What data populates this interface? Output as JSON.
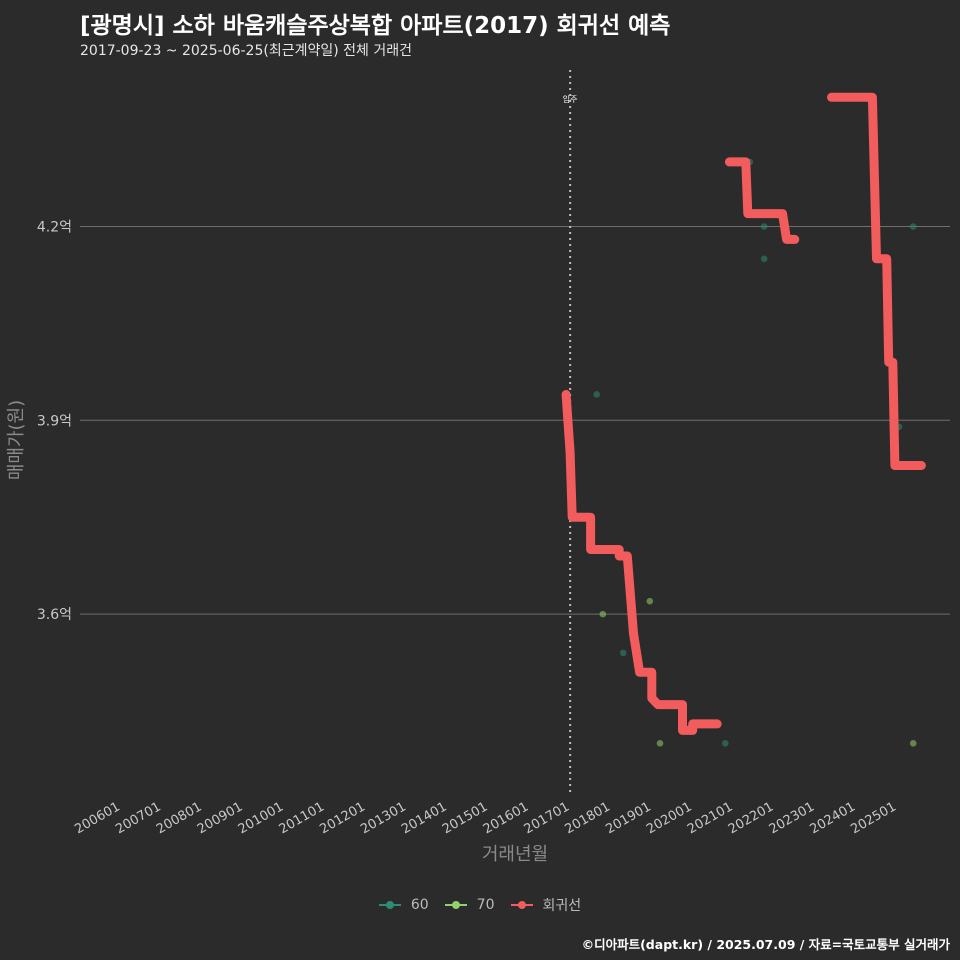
{
  "header": {
    "title": "[광명시] 소하 바움캐슬주상복합 아파트(2017) 회귀선 예측",
    "subtitle": "2017-09-23 ~ 2025-06-25(최근계약일) 전체 거래건"
  },
  "caption": "©디아파트(dapt.kr) / 2025.07.09 / 자료=국토교통부 실거래가",
  "colors": {
    "background": "#2b2b2b",
    "grid": "#6e6e6e",
    "series_60": "#2e8b74",
    "series_70": "#8fd16a",
    "regression": "#f25c5c",
    "axis_text": "#c8c8c8"
  },
  "chart_data": {
    "type": "scatter",
    "xlabel": "거래년월",
    "ylabel": "매매가(원)",
    "x_range": [
      2005.0,
      2026.3
    ],
    "ylim": [
      3.32,
      4.45
    ],
    "x_ticks": [
      "200601",
      "200701",
      "200801",
      "200901",
      "201001",
      "201101",
      "201201",
      "201301",
      "201401",
      "201501",
      "201601",
      "201701",
      "201801",
      "201901",
      "202001",
      "202101",
      "202201",
      "202301",
      "202401",
      "202501"
    ],
    "y_ticks": [
      {
        "value": 3.6,
        "label": "3.6억"
      },
      {
        "value": 3.9,
        "label": "3.9억"
      },
      {
        "value": 4.2,
        "label": "4.2억"
      }
    ],
    "annotation": {
      "x": 2017.0,
      "label": "입주"
    },
    "legend": [
      "60",
      "70",
      "회귀선"
    ],
    "series": [
      {
        "name": "60",
        "points": [
          [
            2017.65,
            3.94
          ],
          [
            2018.3,
            3.54
          ],
          [
            2020.8,
            3.4
          ],
          [
            2021.4,
            4.3
          ],
          [
            2021.75,
            4.2
          ],
          [
            2021.75,
            4.15
          ],
          [
            2025.4,
            4.2
          ],
          [
            2025.05,
            3.89
          ]
        ]
      },
      {
        "name": "70",
        "points": [
          [
            2017.7,
            3.7
          ],
          [
            2017.8,
            3.6
          ],
          [
            2018.95,
            3.62
          ],
          [
            2019.2,
            3.4
          ],
          [
            2025.4,
            3.4
          ]
        ]
      },
      {
        "name": "회귀선",
        "segments": [
          [
            [
              2016.9,
              3.94
            ],
            [
              2017.0,
              3.85
            ],
            [
              2017.05,
              3.75
            ],
            [
              2017.5,
              3.75
            ],
            [
              2017.5,
              3.7
            ],
            [
              2018.2,
              3.7
            ],
            [
              2018.2,
              3.69
            ],
            [
              2018.4,
              3.69
            ],
            [
              2018.55,
              3.57
            ],
            [
              2018.7,
              3.51
            ],
            [
              2019.0,
              3.51
            ],
            [
              2019.0,
              3.47
            ],
            [
              2019.15,
              3.46
            ],
            [
              2019.75,
              3.46
            ],
            [
              2019.75,
              3.42
            ],
            [
              2020.0,
              3.42
            ],
            [
              2020.0,
              3.43
            ],
            [
              2020.6,
              3.43
            ]
          ],
          [
            [
              2020.9,
              4.3
            ],
            [
              2021.3,
              4.3
            ],
            [
              2021.35,
              4.22
            ],
            [
              2022.2,
              4.22
            ],
            [
              2022.3,
              4.18
            ],
            [
              2022.5,
              4.18
            ]
          ],
          [
            [
              2023.4,
              4.4
            ],
            [
              2024.4,
              4.4
            ],
            [
              2024.5,
              4.15
            ],
            [
              2024.75,
              4.15
            ],
            [
              2024.8,
              3.99
            ],
            [
              2024.9,
              3.99
            ],
            [
              2024.95,
              3.83
            ],
            [
              2025.6,
              3.83
            ]
          ]
        ]
      }
    ]
  }
}
